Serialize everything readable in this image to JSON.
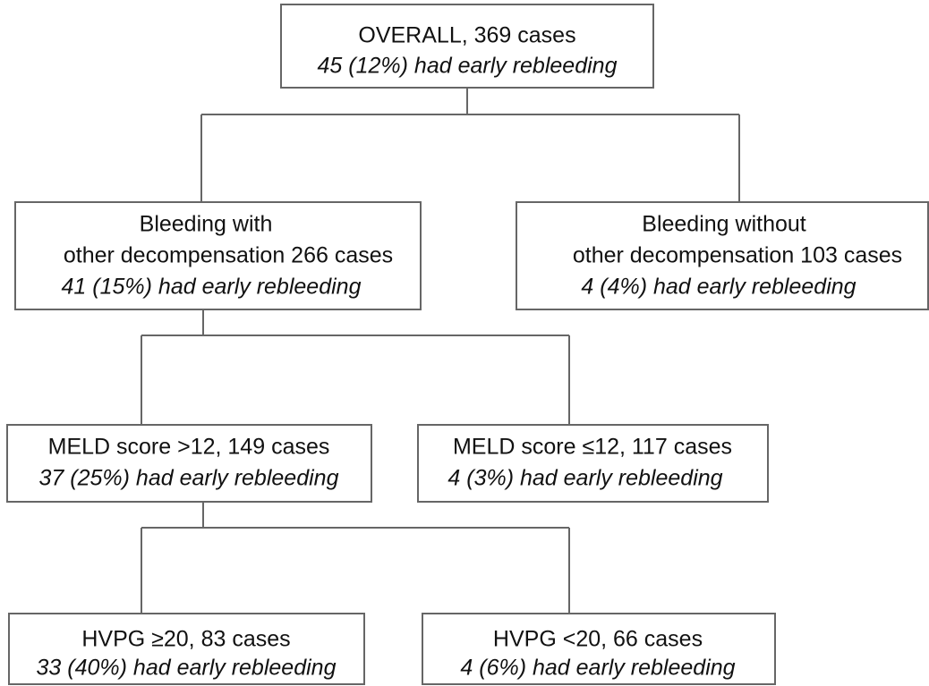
{
  "nodes": [
    {
      "lines": [
        "OVERALL, 369 cases"
      ],
      "outcome": "45 (12%) had early rebleeding"
    },
    {
      "lines": [
        "Bleeding with",
        "other decompensation 266 cases"
      ],
      "outcome": "41 (15%) had early rebleeding"
    },
    {
      "lines": [
        "Bleeding without",
        "other decompensation 103 cases"
      ],
      "outcome": "4 (4%) had early rebleeding"
    },
    {
      "lines": [
        "MELD score >12, 149 cases"
      ],
      "outcome": "37 (25%) had early rebleeding"
    },
    {
      "lines": [
        "MELD score ≤12, 117 cases"
      ],
      "outcome": "4 (3%) had early rebleeding"
    },
    {
      "lines": [
        "HVPG ≥20, 83 cases"
      ],
      "outcome": "33 (40%) had early rebleeding"
    },
    {
      "lines": [
        "HVPG <20, 66 cases"
      ],
      "outcome": "4 (6%) had early rebleeding"
    }
  ]
}
